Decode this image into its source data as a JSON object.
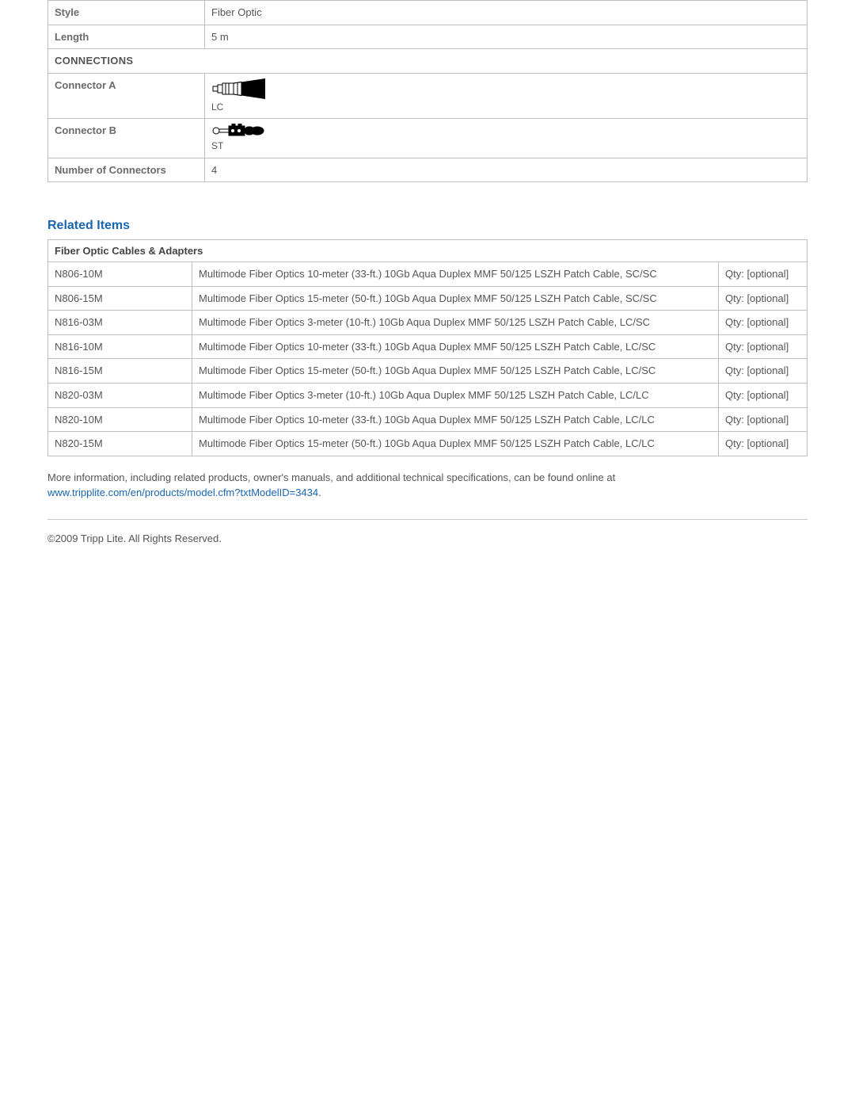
{
  "specs": {
    "style": {
      "label": "Style",
      "value": "Fiber Optic"
    },
    "length": {
      "label": "Length",
      "value": "5 m"
    },
    "connections_header": "CONNECTIONS",
    "connector_a": {
      "label": "Connector A",
      "caption": "LC"
    },
    "connector_b": {
      "label": "Connector B",
      "caption": "ST"
    },
    "num_connectors": {
      "label": "Number of Connectors",
      "value": "4"
    }
  },
  "related": {
    "title": "Related Items",
    "category": "Fiber Optic Cables & Adapters",
    "qty_label": "Qty: [optional]",
    "items": [
      {
        "sku": "N806-10M",
        "desc": "Multimode Fiber Optics 10-meter (33-ft.) 10Gb Aqua Duplex MMF 50/125 LSZH Patch Cable, SC/SC"
      },
      {
        "sku": "N806-15M",
        "desc": "Multimode Fiber Optics 15-meter (50-ft.) 10Gb Aqua Duplex MMF 50/125 LSZH Patch Cable, SC/SC"
      },
      {
        "sku": "N816-03M",
        "desc": "Multimode Fiber Optics 3-meter (10-ft.) 10Gb Aqua Duplex MMF 50/125 LSZH Patch Cable, LC/SC"
      },
      {
        "sku": "N816-10M",
        "desc": "Multimode Fiber Optics 10-meter (33-ft.) 10Gb Aqua Duplex MMF 50/125 LSZH Patch Cable, LC/SC"
      },
      {
        "sku": "N816-15M",
        "desc": "Multimode Fiber Optics 15-meter (50-ft.) 10Gb Aqua Duplex MMF 50/125 LSZH Patch Cable, LC/SC"
      },
      {
        "sku": "N820-03M",
        "desc": "Multimode Fiber Optics 3-meter (10-ft.) 10Gb Aqua Duplex MMF 50/125 LSZH Patch Cable, LC/LC"
      },
      {
        "sku": "N820-10M",
        "desc": "Multimode Fiber Optics 10-meter (33-ft.) 10Gb Aqua Duplex MMF 50/125 LSZH Patch Cable, LC/LC"
      },
      {
        "sku": "N820-15M",
        "desc": "Multimode Fiber Optics 15-meter (50-ft.) 10Gb Aqua Duplex MMF 50/125 LSZH Patch Cable, LC/LC"
      }
    ]
  },
  "more_info": {
    "text": "More information, including related products, owner's manuals, and additional technical specifications, can be found online at",
    "link_text": "www.tripplite.com/en/products/model.cfm?txtModelID=3434",
    "period": "."
  },
  "copyright": "©2009 Tripp Lite.  All Rights Reserved.",
  "colors": {
    "border": "#bfbfbf",
    "text": "#555555",
    "accent": "#1a66b3"
  }
}
